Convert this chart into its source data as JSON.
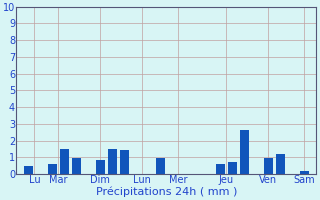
{
  "bars": [
    {
      "x": 1,
      "height": 0.5
    },
    {
      "x": 2,
      "height": 0.0
    },
    {
      "x": 3,
      "height": 0.6
    },
    {
      "x": 4,
      "height": 1.5
    },
    {
      "x": 5,
      "height": 0.95
    },
    {
      "x": 6,
      "height": 0.0
    },
    {
      "x": 7,
      "height": 0.85
    },
    {
      "x": 8,
      "height": 1.5
    },
    {
      "x": 9,
      "height": 1.45
    },
    {
      "x": 10,
      "height": 0.0
    },
    {
      "x": 11,
      "height": 0.0
    },
    {
      "x": 12,
      "height": 0.95
    },
    {
      "x": 13,
      "height": 0.0
    },
    {
      "x": 14,
      "height": 0.0
    },
    {
      "x": 15,
      "height": 0.0
    },
    {
      "x": 16,
      "height": 0.0
    },
    {
      "x": 17,
      "height": 0.6
    },
    {
      "x": 18,
      "height": 0.7
    },
    {
      "x": 19,
      "height": 2.6
    },
    {
      "x": 20,
      "height": 0.0
    },
    {
      "x": 21,
      "height": 0.95
    },
    {
      "x": 22,
      "height": 1.2
    },
    {
      "x": 23,
      "height": 0.0
    },
    {
      "x": 24,
      "height": 0.2
    }
  ],
  "xlim": [
    0,
    25
  ],
  "ylim": [
    0,
    10
  ],
  "bar_color": "#1155bb",
  "background_color": "#d8f5f5",
  "grid_color_x": "#c0a0a0",
  "grid_color_y": "#c0a0a0",
  "tick_labels": [
    "Lu",
    "Mar",
    "Dim",
    "Lun",
    "Mer",
    "Jeu",
    "Ven",
    "Sam"
  ],
  "tick_positions": [
    1.5,
    3.5,
    7.0,
    10.5,
    13.5,
    17.5,
    21.0,
    24.0
  ],
  "xlabel": "Précipitations 24h ( mm )",
  "xlabel_color": "#2244cc",
  "xlabel_fontsize": 8,
  "tick_color": "#2244cc",
  "tick_fontsize": 7,
  "ytick_fontsize": 7,
  "spine_color": "#555577"
}
